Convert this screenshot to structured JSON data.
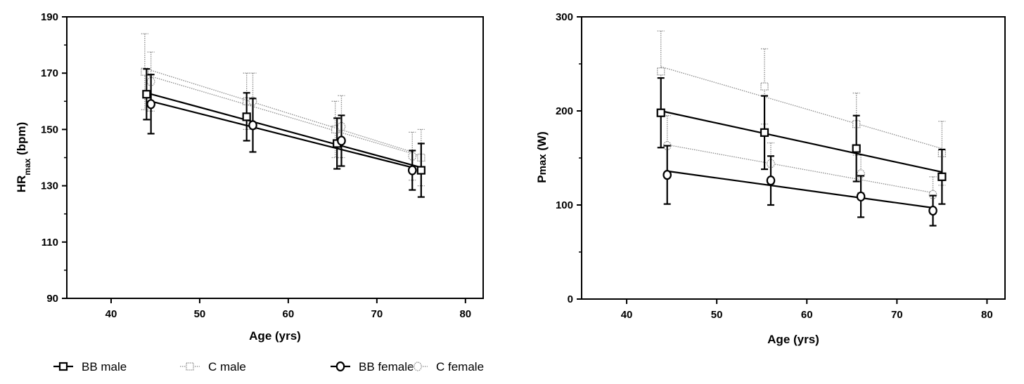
{
  "chart_data": [
    {
      "type": "line",
      "panel": "left",
      "xlabel": "Age (yrs)",
      "ylabel": {
        "main": "HR",
        "sub": "max",
        "unit": " (bpm)"
      },
      "xlim": [
        35,
        82
      ],
      "ylim": [
        90,
        190
      ],
      "xticks": [
        40,
        50,
        60,
        70,
        80
      ],
      "yticks": [
        90,
        110,
        130,
        150,
        170,
        190
      ],
      "series": [
        {
          "name": "BB male",
          "marker": "square",
          "style": "solid",
          "points": [
            {
              "x": 44.0,
              "y": 162.5,
              "err": 9
            },
            {
              "x": 55.3,
              "y": 154.5,
              "err": 8.5
            },
            {
              "x": 65.5,
              "y": 145,
              "err": 9
            },
            {
              "x": 75.0,
              "y": 135.5,
              "err": 9.5
            }
          ],
          "fit": [
            {
              "x": 44.0,
              "y": 163
            },
            {
              "x": 75.0,
              "y": 136.5
            }
          ]
        },
        {
          "name": "C male",
          "marker": "square",
          "style": "dotted",
          "points": [
            {
              "x": 43.8,
              "y": 170.5,
              "err": 13.5
            },
            {
              "x": 55.3,
              "y": 160,
              "err": 10
            },
            {
              "x": 65.3,
              "y": 150,
              "err": 10
            },
            {
              "x": 75.0,
              "y": 140,
              "err": 10
            }
          ],
          "fit": [
            {
              "x": 43.8,
              "y": 169.5
            },
            {
              "x": 75.0,
              "y": 140.5
            }
          ]
        },
        {
          "name": "BB female",
          "marker": "circle",
          "style": "solid",
          "points": [
            {
              "x": 44.5,
              "y": 159,
              "err": 10.5
            },
            {
              "x": 56.0,
              "y": 151.5,
              "err": 9.5
            },
            {
              "x": 66.0,
              "y": 146,
              "err": 9
            },
            {
              "x": 74.0,
              "y": 135.5,
              "err": 7
            }
          ],
          "fit": [
            {
              "x": 44.5,
              "y": 160
            },
            {
              "x": 74.0,
              "y": 136.5
            }
          ]
        },
        {
          "name": "C female",
          "marker": "circle",
          "style": "dotted",
          "points": [
            {
              "x": 44.5,
              "y": 167,
              "err": 10.5
            },
            {
              "x": 56.0,
              "y": 160,
              "err": 10
            },
            {
              "x": 66.0,
              "y": 151,
              "err": 11
            },
            {
              "x": 74.0,
              "y": 140.5,
              "err": 8.5
            }
          ],
          "fit": [
            {
              "x": 44.5,
              "y": 171
            },
            {
              "x": 74.0,
              "y": 142
            }
          ]
        }
      ]
    },
    {
      "type": "line",
      "panel": "right",
      "xlabel": "Age (yrs)",
      "ylabel": {
        "main": "P",
        "sub": "max",
        "unit": " (W)"
      },
      "xlim": [
        35,
        82
      ],
      "ylim": [
        0,
        300
      ],
      "xticks": [
        40,
        50,
        60,
        70,
        80
      ],
      "yticks": [
        0,
        100,
        200,
        300
      ],
      "series": [
        {
          "name": "BB male",
          "marker": "square",
          "style": "solid",
          "points": [
            {
              "x": 43.8,
              "y": 198,
              "err": 37
            },
            {
              "x": 55.3,
              "y": 177,
              "err": 39
            },
            {
              "x": 65.5,
              "y": 160,
              "err": 35
            },
            {
              "x": 75.0,
              "y": 130,
              "err": 29
            }
          ],
          "fit": [
            {
              "x": 43.8,
              "y": 200
            },
            {
              "x": 75.0,
              "y": 135
            }
          ]
        },
        {
          "name": "C male",
          "marker": "square",
          "style": "dotted",
          "points": [
            {
              "x": 43.8,
              "y": 242,
              "err": 43
            },
            {
              "x": 55.3,
              "y": 226,
              "err": 40
            },
            {
              "x": 65.5,
              "y": 186,
              "err": 33
            },
            {
              "x": 75.0,
              "y": 155,
              "err": 34
            }
          ],
          "fit": [
            {
              "x": 43.8,
              "y": 247
            },
            {
              "x": 75.0,
              "y": 160
            }
          ]
        },
        {
          "name": "BB female",
          "marker": "circle",
          "style": "solid",
          "points": [
            {
              "x": 44.5,
              "y": 132,
              "err": 31
            },
            {
              "x": 56.0,
              "y": 126,
              "err": 26
            },
            {
              "x": 66.0,
              "y": 109,
              "err": 22
            },
            {
              "x": 74.0,
              "y": 94,
              "err": 16
            }
          ],
          "fit": [
            {
              "x": 44.5,
              "y": 136
            },
            {
              "x": 74.0,
              "y": 97
            }
          ]
        },
        {
          "name": "C female",
          "marker": "circle",
          "style": "dotted",
          "points": [
            {
              "x": 44.5,
              "y": 163,
              "err": 32
            },
            {
              "x": 56.0,
              "y": 144,
              "err": 22
            },
            {
              "x": 66.0,
              "y": 133,
              "err": 20
            },
            {
              "x": 74.0,
              "y": 111,
              "err": 19
            }
          ],
          "fit": [
            {
              "x": 44.5,
              "y": 164
            },
            {
              "x": 74.0,
              "y": 113
            }
          ]
        }
      ]
    }
  ],
  "legend": {
    "placement": "bottom-left",
    "items": [
      {
        "label": "BB male",
        "marker": "square",
        "style": "solid"
      },
      {
        "label": "C male",
        "marker": "square",
        "style": "dotted"
      },
      {
        "label": "BB female",
        "marker": "circle",
        "style": "solid"
      },
      {
        "label": "C female",
        "marker": "circle",
        "style": "dotted"
      }
    ]
  },
  "colors": {
    "solid": "#000000",
    "dotted": "#8a8a8a"
  }
}
